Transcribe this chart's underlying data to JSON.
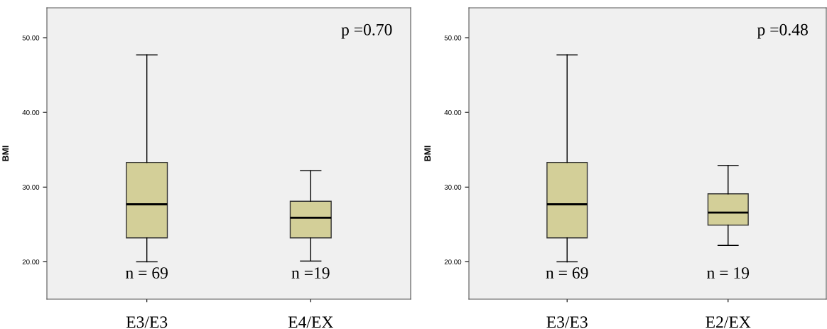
{
  "chart_data": [
    {
      "type": "box",
      "ylabel": "BMI",
      "categories": [
        "E3/E3",
        "E4/EX"
      ],
      "color": "#d3cf98",
      "ylim": [
        15,
        54
      ],
      "yticks": [
        {
          "value": 20,
          "label": "20.00"
        },
        {
          "value": 30,
          "label": "30.00"
        },
        {
          "value": 40,
          "label": "40.00"
        },
        {
          "value": 50,
          "label": "50.00"
        }
      ],
      "boxes": [
        {
          "low": 20.0,
          "q1": 23.2,
          "median": 27.7,
          "q3": 33.3,
          "high": 47.7
        },
        {
          "low": 20.1,
          "q1": 23.2,
          "median": 25.9,
          "q3": 28.1,
          "high": 32.2
        }
      ],
      "annotations": [
        "p =0.70",
        "n = 69",
        "n =19"
      ],
      "grid": false
    },
    {
      "type": "box",
      "ylabel": "BMI",
      "categories": [
        "E3/E3",
        "E2/EX"
      ],
      "color": "#d3cf98",
      "ylim": [
        15,
        54
      ],
      "yticks": [
        {
          "value": 20,
          "label": "20.00"
        },
        {
          "value": 30,
          "label": "30.00"
        },
        {
          "value": 40,
          "label": "40.00"
        },
        {
          "value": 50,
          "label": "50.00"
        }
      ],
      "boxes": [
        {
          "low": 20.0,
          "q1": 23.2,
          "median": 27.7,
          "q3": 33.3,
          "high": 47.7
        },
        {
          "low": 22.2,
          "q1": 24.9,
          "median": 26.6,
          "q3": 29.1,
          "high": 32.9
        }
      ],
      "annotations": [
        "p =0.48",
        "n = 69",
        "n = 19"
      ],
      "grid": false
    }
  ]
}
